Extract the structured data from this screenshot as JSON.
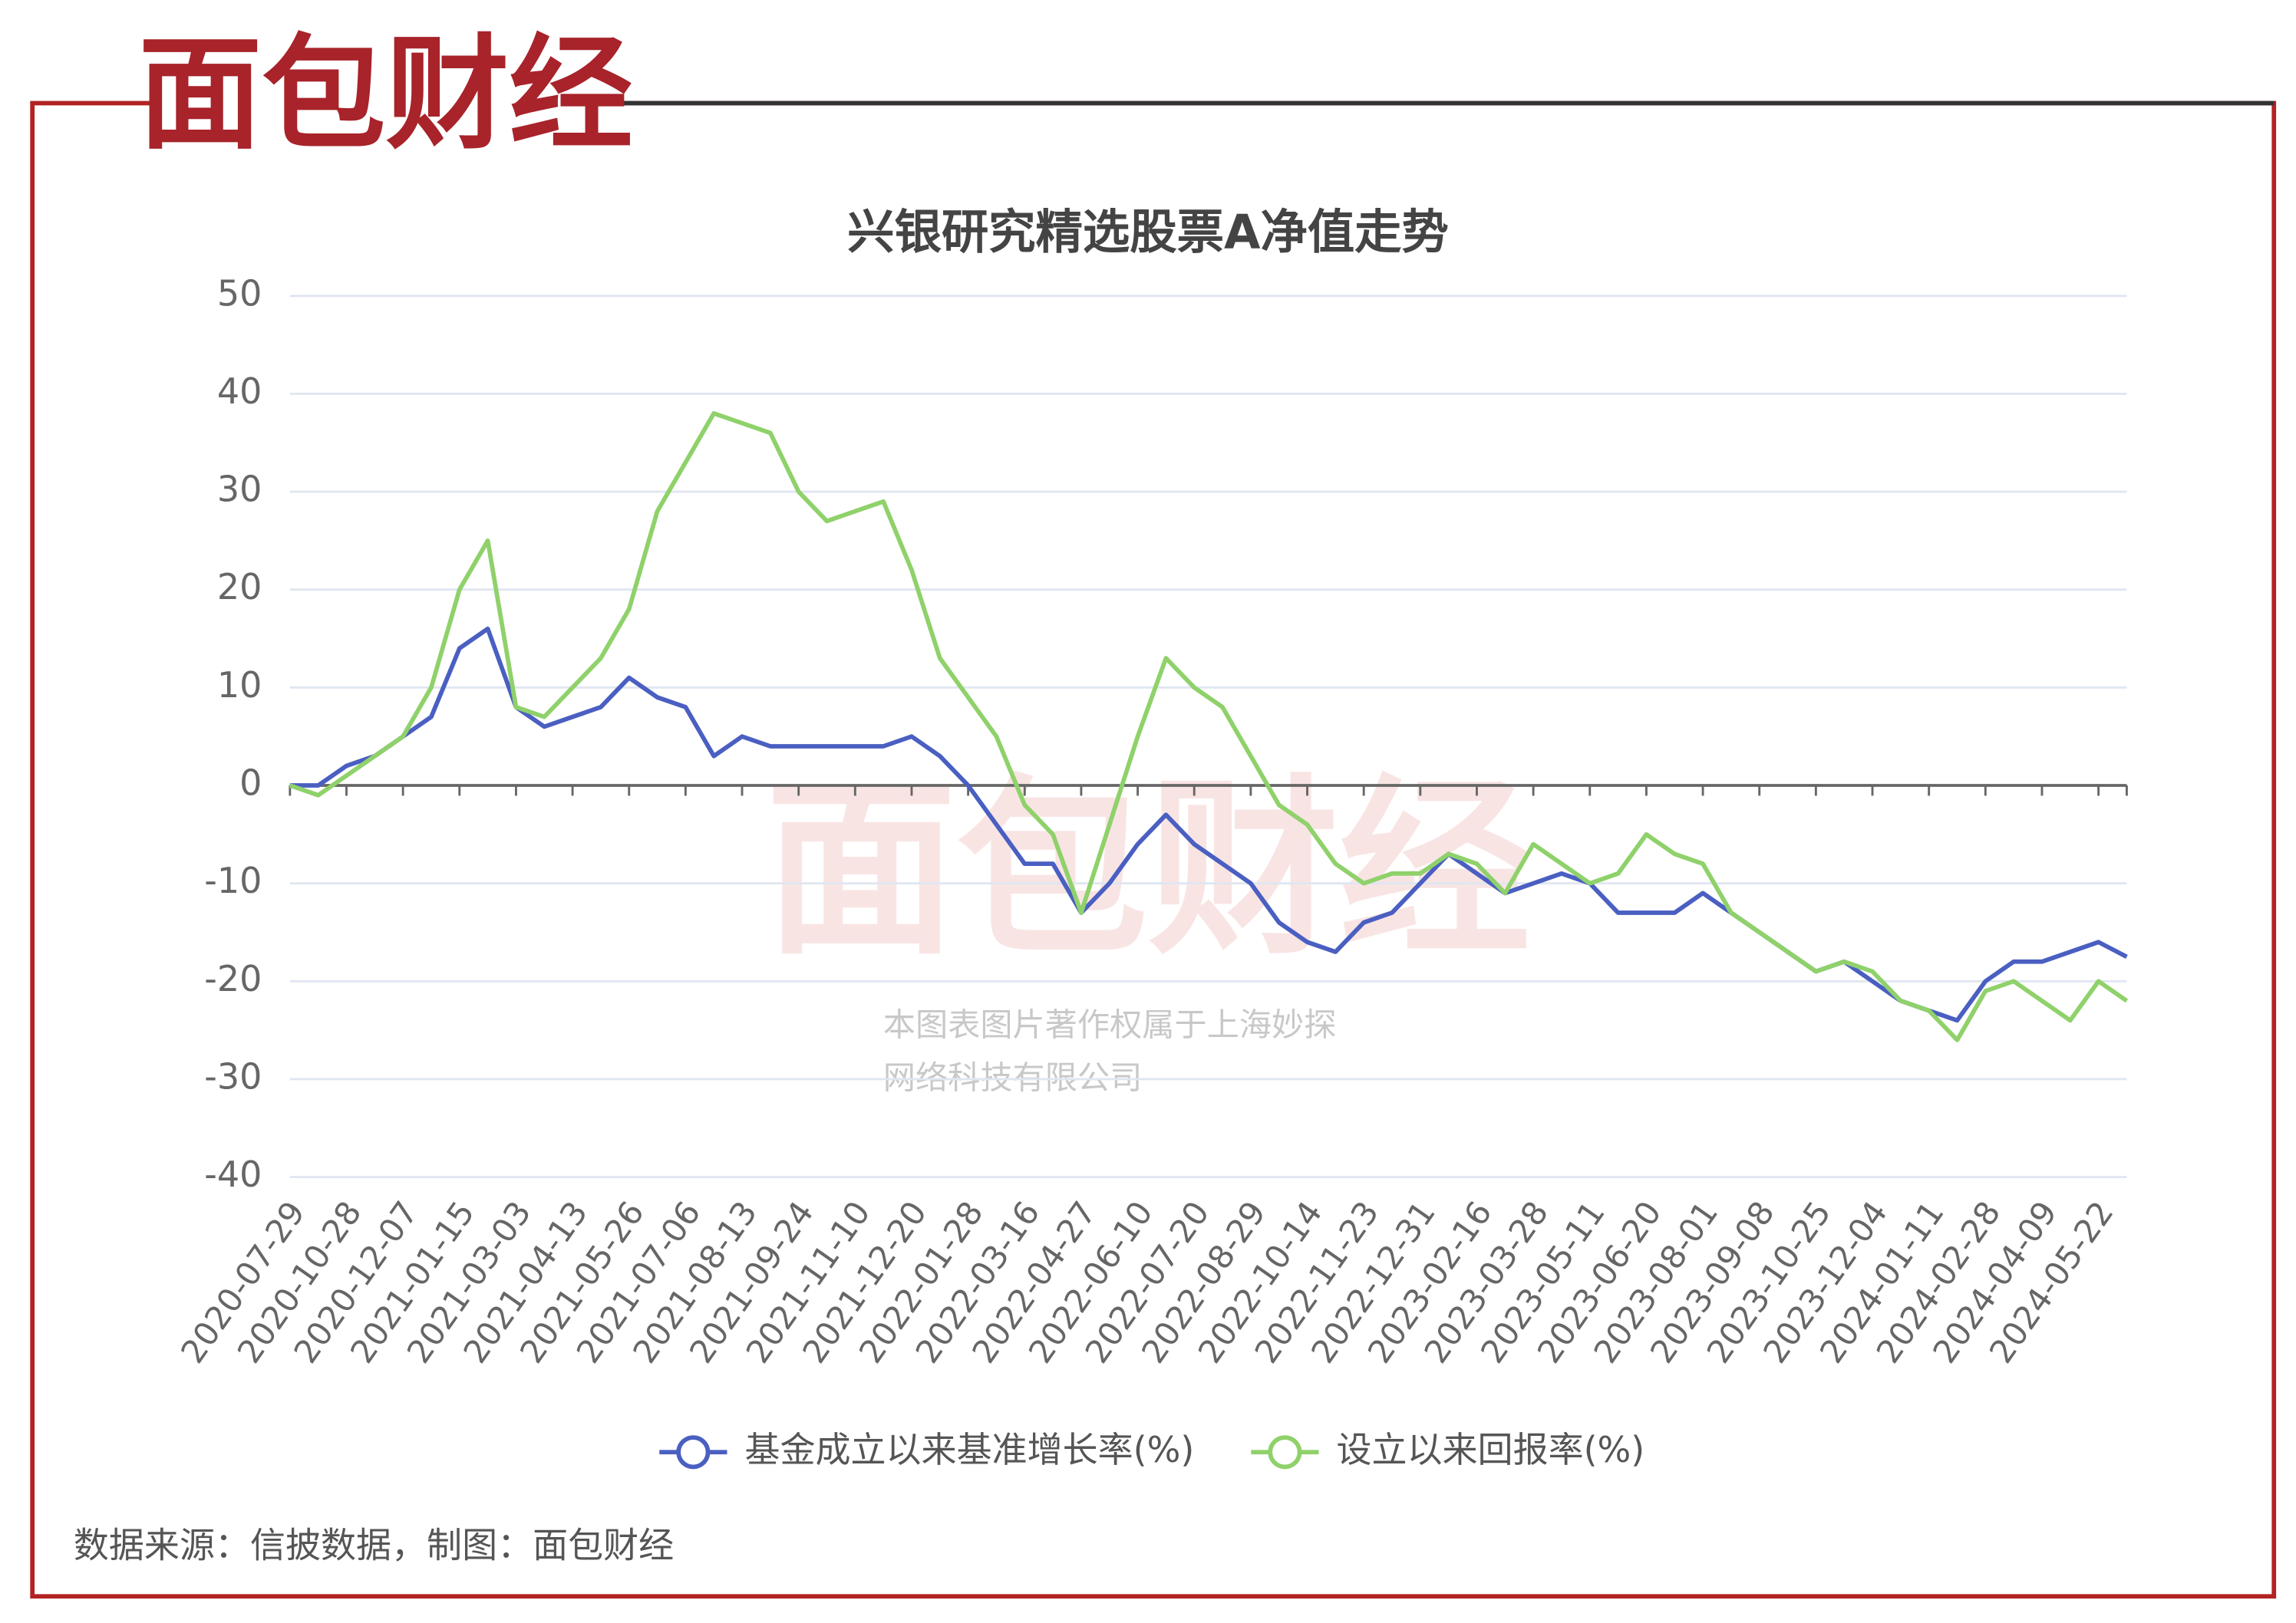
{
  "brand": "面包财经",
  "watermark": [
    "本图表图片著作权属于上海妙探",
    "网络科技有限公司"
  ],
  "source": "数据来源：信披数据，制图：面包财经",
  "chart_data": {
    "type": "line",
    "title": "兴银研究精选股票A净值走势",
    "categories": [
      "2020-07-29",
      null,
      "2020-10-28",
      null,
      "2020-12-07",
      null,
      "2021-01-15",
      null,
      "2021-03-03",
      null,
      "2021-04-13",
      null,
      "2021-05-26",
      null,
      "2021-07-06",
      null,
      "2021-08-13",
      null,
      "2021-09-24",
      null,
      "2021-11-10",
      null,
      "2021-12-20",
      null,
      "2022-01-28",
      null,
      "2022-03-16",
      null,
      "2022-04-27",
      null,
      "2022-06-10",
      null,
      "2022-07-20",
      null,
      "2022-08-29",
      null,
      "2022-10-14",
      null,
      "2022-11-23",
      null,
      "2022-12-31",
      null,
      "2023-02-16",
      null,
      "2023-03-28",
      null,
      "2023-05-11",
      null,
      "2023-06-20",
      null,
      "2023-08-01",
      null,
      "2023-09-08",
      null,
      "2023-10-25",
      null,
      "2023-12-04",
      null,
      "2024-01-11",
      null,
      "2024-02-28",
      null,
      "2024-04-09",
      null,
      "2024-05-22",
      null
    ],
    "series": [
      {
        "name": "基金成立以来基准增长率(%)",
        "color": "#4a5fc1",
        "values": [
          0,
          0,
          2,
          3,
          5,
          7,
          14,
          16,
          8,
          6,
          7,
          8,
          11,
          9,
          8,
          3,
          5,
          4,
          4,
          4,
          4,
          4,
          5,
          3,
          0,
          -4,
          -8,
          -8,
          -13,
          -10,
          -6,
          -3,
          -6,
          -8,
          -10,
          -14,
          -16,
          -17,
          -14,
          -13,
          -10,
          -7,
          -9,
          -11,
          -10,
          -9,
          -10,
          -13,
          -13,
          -13,
          -11,
          -13,
          -15,
          -17,
          -19,
          -18,
          -20,
          -22,
          -23,
          -24,
          -20,
          -18,
          -18,
          -17,
          -16,
          -17.5
        ]
      },
      {
        "name": "设立以来回报率(%)",
        "color": "#8fd16a",
        "values": [
          0,
          -1,
          1,
          3,
          5,
          10,
          20,
          25,
          8,
          7,
          10,
          13,
          18,
          28,
          33,
          38,
          37,
          36,
          30,
          27,
          28,
          29,
          22,
          13,
          9,
          5,
          -2,
          -5,
          -13,
          -4,
          5,
          13,
          10,
          8,
          3,
          -2,
          -4,
          -8,
          -10,
          -9,
          -9,
          -7,
          -8,
          -11,
          -6,
          -8,
          -10,
          -9,
          -5,
          -7,
          -8,
          -13,
          -15,
          -17,
          -19,
          -18,
          -19,
          -22,
          -23,
          -26,
          -21,
          -20,
          -22,
          -24,
          -20,
          -22
        ]
      }
    ],
    "ylim": [
      -40,
      50
    ],
    "yticks": [
      -40,
      -30,
      -20,
      -10,
      0,
      10,
      20,
      30,
      40,
      50
    ],
    "grid": true,
    "legend": "bottom"
  }
}
